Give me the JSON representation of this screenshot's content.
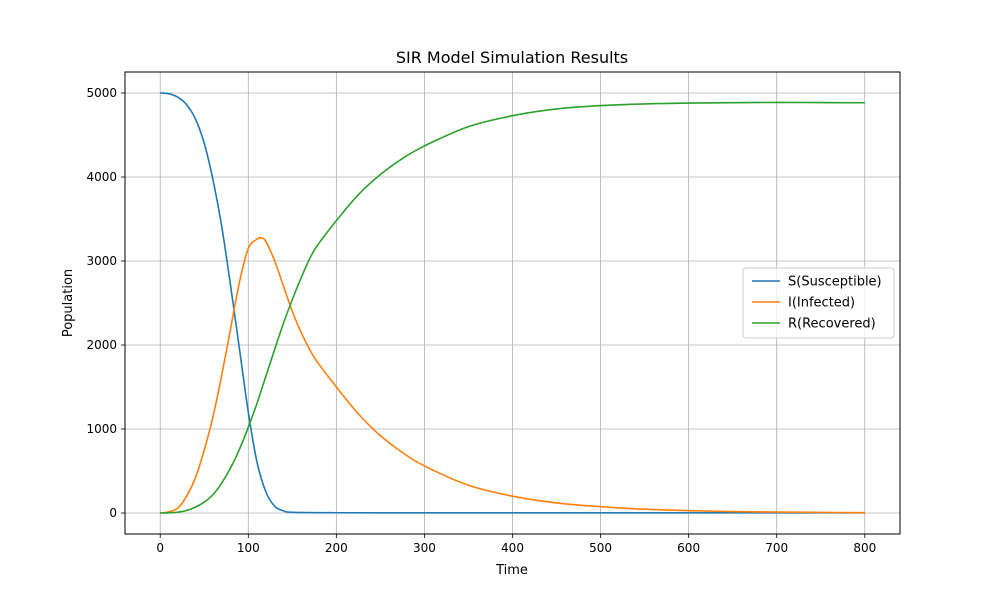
{
  "chart_data": {
    "type": "line",
    "title": "SIR Model Simulation Results",
    "xlabel": "Time",
    "ylabel": "Population",
    "xlim": [
      -40,
      840
    ],
    "ylim": [
      -250,
      5250
    ],
    "xticks": [
      0,
      100,
      200,
      300,
      400,
      500,
      600,
      700,
      800
    ],
    "yticks": [
      0,
      1000,
      2000,
      3000,
      4000,
      5000
    ],
    "grid": true,
    "legend_position": "center-right",
    "series": [
      {
        "name": "S(Susceptible)",
        "color": "#1f77b4",
        "x": [
          0,
          10,
          20,
          30,
          40,
          50,
          60,
          70,
          80,
          90,
          100,
          110,
          120,
          130,
          140,
          150,
          200,
          300,
          400,
          500,
          600,
          700,
          800
        ],
        "y": [
          5000,
          4990,
          4950,
          4860,
          4690,
          4400,
          3960,
          3400,
          2700,
          1950,
          1200,
          600,
          250,
          80,
          25,
          8,
          3,
          2,
          2,
          2,
          2,
          2,
          2
        ]
      },
      {
        "name": "I(Infected)",
        "color": "#ff7f0e",
        "x": [
          0,
          10,
          20,
          30,
          40,
          50,
          60,
          70,
          80,
          90,
          100,
          110,
          115,
          120,
          130,
          140,
          150,
          160,
          175,
          200,
          225,
          250,
          275,
          300,
          350,
          400,
          450,
          500,
          550,
          600,
          650,
          700,
          750,
          800
        ],
        "y": [
          0,
          15,
          60,
          200,
          420,
          750,
          1150,
          1650,
          2200,
          2750,
          3150,
          3260,
          3275,
          3230,
          3000,
          2700,
          2400,
          2150,
          1850,
          1500,
          1180,
          920,
          720,
          560,
          330,
          200,
          120,
          75,
          45,
          28,
          17,
          11,
          7,
          4
        ]
      },
      {
        "name": "R(Recovered)",
        "color": "#2ca02c",
        "x": [
          0,
          10,
          20,
          30,
          40,
          50,
          60,
          70,
          80,
          90,
          100,
          110,
          120,
          130,
          140,
          150,
          160,
          175,
          200,
          225,
          250,
          275,
          300,
          350,
          400,
          450,
          500,
          550,
          600,
          650,
          700,
          750,
          800
        ],
        "y": [
          0,
          2,
          10,
          30,
          70,
          130,
          220,
          360,
          540,
          760,
          1020,
          1310,
          1630,
          1950,
          2260,
          2540,
          2800,
          3130,
          3480,
          3790,
          4030,
          4220,
          4370,
          4600,
          4730,
          4810,
          4850,
          4870,
          4880,
          4885,
          4888,
          4886,
          4884
        ]
      }
    ]
  }
}
